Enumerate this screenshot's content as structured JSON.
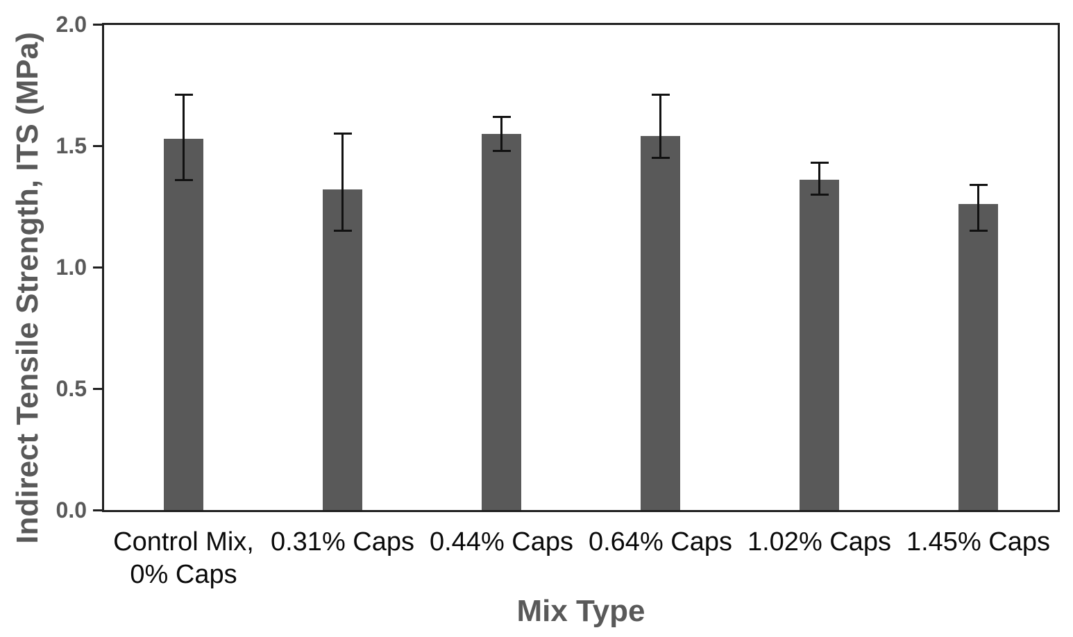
{
  "chart_data": {
    "type": "bar",
    "title": "",
    "xlabel": "Mix Type",
    "ylabel": "Indirect Tensile Strength, ITS (MPa)",
    "categories": [
      "Control Mix,\n0% Caps",
      "0.31% Caps",
      "0.44% Caps",
      "0.64% Caps",
      "1.02% Caps",
      "1.45% Caps"
    ],
    "values": [
      1.53,
      1.32,
      1.55,
      1.54,
      1.36,
      1.26
    ],
    "error_high": [
      1.71,
      1.55,
      1.62,
      1.71,
      1.43,
      1.34
    ],
    "error_low": [
      1.36,
      1.15,
      1.48,
      1.45,
      1.3,
      1.15
    ],
    "ylim": [
      0.0,
      2.0
    ],
    "yticks": [
      "0.0",
      "0.5",
      "1.0",
      "1.5",
      "2.0"
    ],
    "grid": false,
    "legend": "none",
    "bar_color": "#595959",
    "axis_color": "#1f1f1f",
    "error_bar_color": "#111111",
    "axis_label_color": "#595959",
    "tick_label_color": "#595959",
    "category_label_color": "#0a0a0a",
    "background_color": "#ffffff"
  }
}
